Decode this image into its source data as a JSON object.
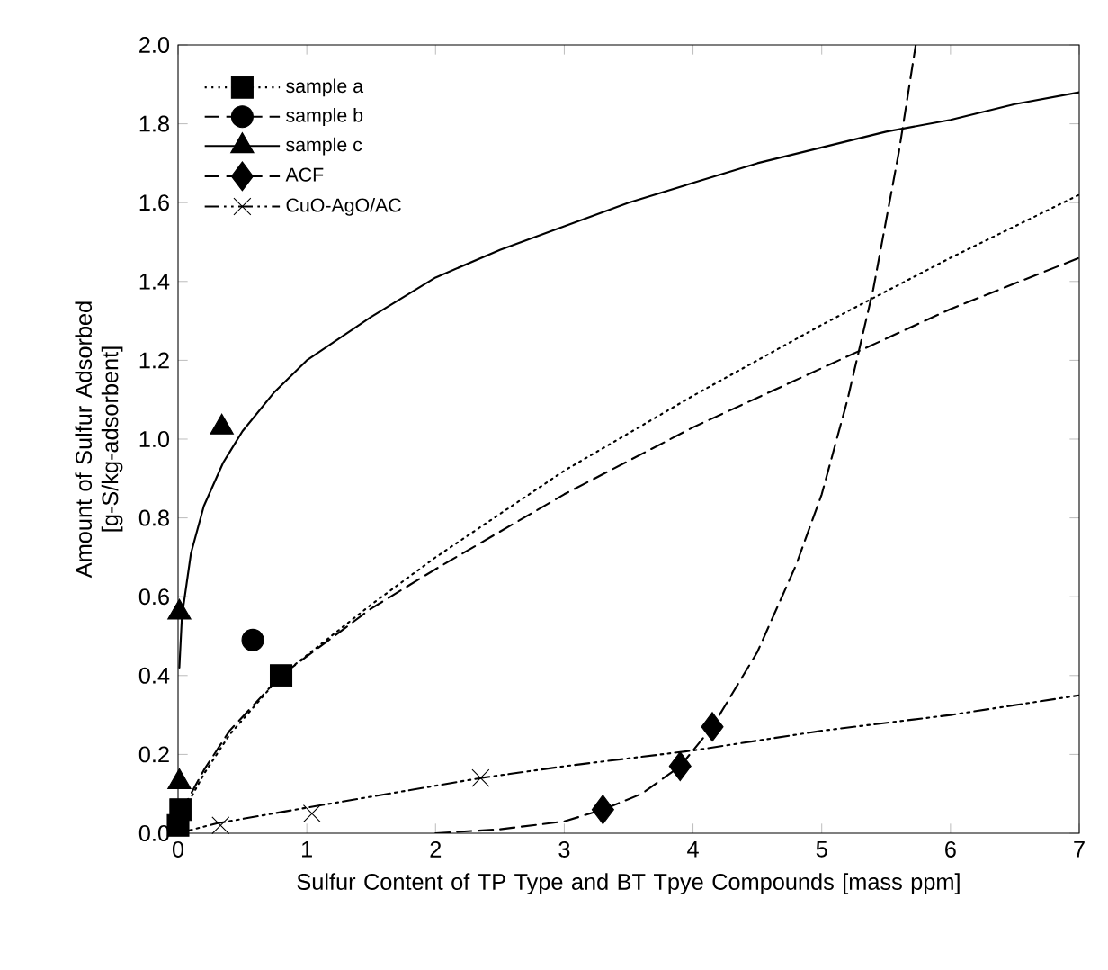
{
  "chart_data": {
    "type": "line",
    "xlabel": "Sulfur Content of TP Type and BT Tpye Compounds [mass ppm]",
    "ylabel": "Amount of Sulfur Adsorbed [g-S/kg-adsorbent]",
    "xlim": [
      0,
      7
    ],
    "ylim": [
      0,
      2.0
    ],
    "xticks": [
      0,
      1,
      2,
      3,
      4,
      5,
      6,
      7
    ],
    "yticks": [
      {
        "value": 0,
        "label": "0.0"
      },
      {
        "value": 0.2,
        "label": "0.2"
      },
      {
        "value": 0.4,
        "label": "0.4"
      },
      {
        "value": 0.6,
        "label": "0.6"
      },
      {
        "value": 0.8,
        "label": "0.8"
      },
      {
        "value": 1.0,
        "label": "1.0"
      },
      {
        "value": 1.2,
        "label": "1.2"
      },
      {
        "value": 1.4,
        "label": "1.4"
      },
      {
        "value": 1.6,
        "label": "1.6"
      },
      {
        "value": 1.8,
        "label": "1.8"
      },
      {
        "value": 2.0,
        "label": "2.0"
      }
    ],
    "grid": false,
    "legend": "top left",
    "series": [
      {
        "name": "sample a",
        "type": "scatter",
        "marker": "square",
        "line_style": "dotted",
        "color": "#000000",
        "x": [
          0,
          0.02,
          0.8
        ],
        "values": [
          0.02,
          0.06,
          0.4
        ]
      },
      {
        "name": "sample b",
        "type": "scatter",
        "marker": "circle",
        "line_style": "dashed",
        "color": "#000000",
        "x": [
          0.58
        ],
        "values": [
          0.49
        ]
      },
      {
        "name": "sample c",
        "type": "scatter",
        "marker": "triangle",
        "line_style": "solid",
        "color": "#000000",
        "x": [
          0.01,
          0.01,
          0.34
        ],
        "values": [
          0.13,
          0.56,
          1.03
        ]
      },
      {
        "name": "ACF",
        "type": "scatter",
        "marker": "diamond",
        "line_style": "dashed",
        "color": "#000000",
        "x": [
          3.3,
          3.9,
          4.15
        ],
        "values": [
          0.06,
          0.17,
          0.27
        ]
      },
      {
        "name": "CuO-AgO/AC",
        "type": "scatter",
        "marker": "cross",
        "line_style": "dashdot",
        "color": "#000000",
        "x": [
          0.33,
          1.04,
          2.35
        ],
        "values": [
          0.02,
          0.05,
          0.14
        ]
      },
      {
        "marker": "none",
        "line_style": "dotted",
        "color": "#000000",
        "x": [
          0,
          0.05,
          0.2,
          0.4,
          0.8,
          1.5,
          2,
          3,
          4,
          5,
          6,
          7
        ],
        "values": [
          0,
          0.06,
          0.15,
          0.25,
          0.4,
          0.58,
          0.7,
          0.92,
          1.11,
          1.29,
          1.46,
          1.62
        ]
      },
      {
        "marker": "none",
        "line_style": "dashed",
        "color": "#000000",
        "x": [
          0,
          0.05,
          0.2,
          0.4,
          0.8,
          1.5,
          2,
          3,
          4,
          5,
          6,
          7
        ],
        "values": [
          0,
          0.07,
          0.16,
          0.26,
          0.4,
          0.57,
          0.67,
          0.86,
          1.03,
          1.18,
          1.33,
          1.46
        ]
      },
      {
        "marker": "none",
        "line_style": "solid",
        "color": "#000000",
        "x": [
          0.01,
          0.03,
          0.1,
          0.2,
          0.35,
          0.5,
          0.75,
          1,
          1.5,
          2,
          2.5,
          3,
          3.5,
          4,
          4.5,
          5,
          5.5,
          6,
          6.5,
          7
        ],
        "values": [
          0.42,
          0.55,
          0.71,
          0.83,
          0.94,
          1.02,
          1.12,
          1.2,
          1.31,
          1.41,
          1.48,
          1.54,
          1.6,
          1.65,
          1.7,
          1.74,
          1.78,
          1.81,
          1.85,
          1.88
        ]
      },
      {
        "marker": "none",
        "line_style": "dashed",
        "color": "#000000",
        "x": [
          2.0,
          2.5,
          3.0,
          3.3,
          3.6,
          3.9,
          4.15,
          4.5,
          4.8,
          5.0,
          5.2,
          5.4,
          5.6,
          5.73
        ],
        "values": [
          0,
          0.01,
          0.03,
          0.06,
          0.1,
          0.17,
          0.27,
          0.46,
          0.68,
          0.86,
          1.1,
          1.38,
          1.73,
          2.0
        ]
      },
      {
        "marker": "none",
        "line_style": "dashdot",
        "color": "#000000",
        "x": [
          0,
          0.3,
          1,
          2.35,
          3,
          4,
          5,
          6,
          7
        ],
        "values": [
          0,
          0.025,
          0.065,
          0.14,
          0.17,
          0.21,
          0.26,
          0.3,
          0.35
        ]
      }
    ]
  }
}
